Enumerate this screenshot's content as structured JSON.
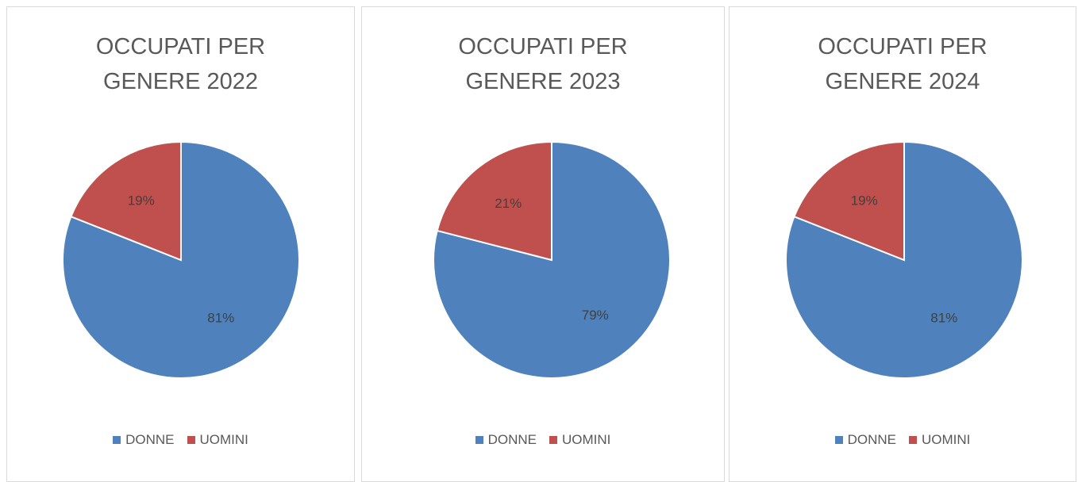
{
  "chart_data": [
    {
      "type": "pie",
      "title": "OCCUPATI PER GENERE 2022",
      "categories": [
        "DONNE",
        "UOMINI"
      ],
      "values": [
        81,
        19
      ],
      "value_labels": [
        "81%",
        "19%"
      ],
      "colors": [
        "#4f81bd",
        "#c0504d"
      ]
    },
    {
      "type": "pie",
      "title": "OCCUPATI PER GENERE 2023",
      "categories": [
        "DONNE",
        "UOMINI"
      ],
      "values": [
        79,
        21
      ],
      "value_labels": [
        "79%",
        "21%"
      ],
      "colors": [
        "#4f81bd",
        "#c0504d"
      ]
    },
    {
      "type": "pie",
      "title": "OCCUPATI PER GENERE 2024",
      "categories": [
        "DONNE",
        "UOMINI"
      ],
      "values": [
        81,
        19
      ],
      "value_labels": [
        "81%",
        "19%"
      ],
      "colors": [
        "#4f81bd",
        "#c0504d"
      ]
    }
  ]
}
